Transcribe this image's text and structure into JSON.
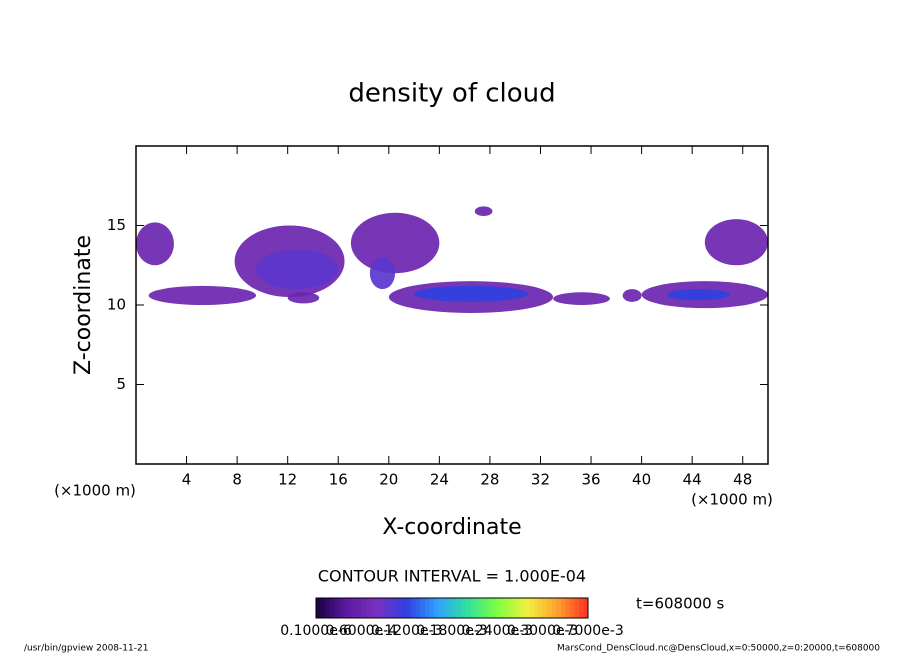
{
  "chart_data": {
    "type": "heatmap",
    "title": "density of cloud",
    "x_label": "X-coordinate",
    "y_label": "Z-coordinate",
    "x_unit": "(×1000 m)",
    "y_unit": "(×1000 m)",
    "xlim": [
      0,
      50
    ],
    "ylim": [
      0,
      20
    ],
    "xticks": [
      4,
      8,
      12,
      16,
      20,
      24,
      28,
      32,
      36,
      40,
      44,
      48
    ],
    "yticks": [
      5,
      10,
      15
    ],
    "contour_interval": "CONTOUR INTERVAL = 1.000E-04",
    "time_label": "t=608000 s",
    "clim": [
      0,
      0.0003
    ],
    "colors": [
      "#1a0040",
      "#5a1aa0",
      "#7a30c0",
      "#3040e0",
      "#30a0ff",
      "#30e0a0",
      "#80ff40",
      "#f0f040",
      "#ffa030",
      "#ff3020"
    ],
    "colorbar_labels": [
      "0.1000e-6",
      "0.6000e-4",
      "0.1200e-3",
      "0.1800e-3",
      "0.2400e-3",
      "0.3000e-3",
      "0.7000e-3"
    ],
    "regions": [
      {
        "x": [
          0,
          3
        ],
        "z": [
          12.5,
          15.2
        ],
        "value": 5e-05
      },
      {
        "x": [
          1,
          9.5
        ],
        "z": [
          10,
          11.2
        ],
        "value": 5e-05
      },
      {
        "x": [
          7.8,
          16.5
        ],
        "z": [
          10.5,
          15
        ],
        "value": 5e-05
      },
      {
        "x": [
          9.5,
          16
        ],
        "z": [
          11,
          13.5
        ],
        "value": 8e-05
      },
      {
        "x": [
          12,
          14.5
        ],
        "z": [
          10.1,
          10.8
        ],
        "value": 5e-05
      },
      {
        "x": [
          17,
          24
        ],
        "z": [
          12,
          15.8
        ],
        "value": 5e-05
      },
      {
        "x": [
          18.5,
          20.5
        ],
        "z": [
          11,
          13
        ],
        "value": 8e-05
      },
      {
        "x": [
          20,
          33
        ],
        "z": [
          9.5,
          11.5
        ],
        "value": 5e-05
      },
      {
        "x": [
          22,
          31
        ],
        "z": [
          10.2,
          11.2
        ],
        "value": 0.0001
      },
      {
        "x": [
          26.8,
          28.2
        ],
        "z": [
          15.6,
          16.2
        ],
        "value": 5e-05
      },
      {
        "x": [
          33,
          37.5
        ],
        "z": [
          10,
          10.8
        ],
        "value": 5e-05
      },
      {
        "x": [
          38.5,
          40
        ],
        "z": [
          10.2,
          11
        ],
        "value": 5e-05
      },
      {
        "x": [
          40,
          50
        ],
        "z": [
          9.8,
          11.5
        ],
        "value": 5e-05
      },
      {
        "x": [
          42,
          47
        ],
        "z": [
          10.3,
          11
        ],
        "value": 0.0001
      },
      {
        "x": [
          45,
          50
        ],
        "z": [
          12.5,
          15.4
        ],
        "value": 5e-05
      }
    ],
    "footer_left": "/usr/bin/gpview   2008-11-21",
    "footer_right": "MarsCond_DensCloud.nc@DensCloud,x=0:50000,z=0:20000,t=608000"
  }
}
